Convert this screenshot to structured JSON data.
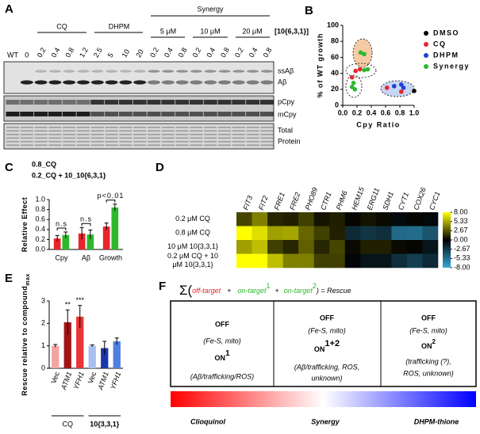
{
  "panels": [
    "A",
    "B",
    "C",
    "D",
    "E",
    "F"
  ],
  "blot": {
    "lanes": [
      "WT",
      "0",
      "0.2",
      "0.4",
      "0.8",
      "1.2",
      "2.5",
      "5",
      "10",
      "20",
      "0.2",
      "0.4",
      "0.8",
      "0.2",
      "0.4",
      "0.8",
      "0.2",
      "0.4",
      "0.8"
    ],
    "groups": [
      "CQ",
      "DHPM"
    ],
    "synergy": "Synergy",
    "concentrations": [
      "5 μM",
      "10 μM",
      "20 μM"
    ],
    "compound": "[10{6,3,1}]",
    "bands": [
      "ssAβ",
      "Aβ",
      "pCpy",
      "mCpy"
    ],
    "loading": [
      "Total",
      "Protein"
    ]
  },
  "chart_data": [
    {
      "type": "scatter",
      "xlabel": "Cpy Ratio",
      "ylabel": "% of WT growth",
      "xlim": [
        0,
        1
      ],
      "xticks": [
        {
          "value": 0,
          "label": "0.0"
        },
        0.2,
        0.4,
        0.6,
        0.8,
        {
          "value": 1,
          "label": "1.0"
        }
      ],
      "ylim": [
        0,
        100
      ],
      "yticks": [
        0,
        20,
        40,
        60,
        80,
        100
      ],
      "series": [
        {
          "name": "DMSO",
          "color": "#000000",
          "x": [
            1.0
          ],
          "values": [
            18
          ]
        },
        {
          "name": "CQ",
          "color": "#e8262a",
          "x": [
            0.13,
            0.18,
            0.24,
            0.62,
            0.82
          ],
          "values": [
            35,
            43,
            45,
            22,
            17
          ]
        },
        {
          "name": "DHPM",
          "color": "#1f3fd6",
          "x": [
            0.72,
            0.82,
            0.85
          ],
          "values": [
            24,
            26,
            22
          ]
        },
        {
          "name": "Synergy",
          "color": "#2db82d",
          "x": [
            0.25,
            0.3,
            0.3,
            0.35,
            0.15,
            0.17,
            0.13
          ],
          "values": [
            66,
            64,
            44,
            45,
            28,
            20,
            23
          ]
        }
      ]
    },
    {
      "type": "bar",
      "ylabel": "Relative Effect",
      "categories": [
        "Cpy",
        "Aβ",
        "Growth"
      ],
      "series": [
        {
          "name": "0.8_CQ",
          "color": "#e8262a",
          "values": [
            0.22,
            0.32,
            0.46
          ],
          "errors": [
            0.06,
            0.12,
            0.07
          ]
        },
        {
          "name": "0.2_CQ + 10_10{6,3,1}",
          "color": "#2db82d",
          "values": [
            0.29,
            0.3,
            0.84
          ],
          "errors": [
            0.06,
            0.09,
            0.07
          ]
        }
      ],
      "ylim": [
        0,
        1
      ],
      "yticks": [
        {
          "value": 0,
          "label": "0.0"
        },
        0.2,
        0.4,
        0.6,
        0.8,
        {
          "value": 1,
          "label": "1.0"
        }
      ],
      "annotations": [
        "n.s",
        "n.s",
        "p<0.01"
      ]
    },
    {
      "type": "heatmap",
      "columns": [
        "FIT3",
        "FIT2",
        "FRE1",
        "FRE2",
        "PHO89",
        "CTR1",
        "PHM6",
        "HEM15",
        "ERG11",
        "SDH1",
        "CYT1",
        "COX26",
        "CYC1"
      ],
      "rows": [
        [
          "0.2 μM CQ"
        ],
        [
          "0.8 μM CQ"
        ],
        [
          "10 μM 10{3,3,1}"
        ],
        [
          "0.2 μM CQ + 10",
          "μM 10{3,3,1}"
        ]
      ],
      "values": [
        [
          2.2,
          4.0,
          1.2,
          1.0,
          2.0,
          0.6,
          1.0,
          0.2,
          0.6,
          0.3,
          -0.5,
          0.2,
          -0.4
        ],
        [
          8.0,
          7.0,
          5.0,
          5.2,
          3.2,
          2.0,
          1.0,
          -2.0,
          -2.5,
          -2.2,
          -5.0,
          -5.2,
          -4.0
        ],
        [
          5.0,
          6.0,
          2.0,
          1.2,
          3.0,
          1.2,
          2.2,
          0.3,
          1.0,
          1.0,
          0.3,
          0.2,
          -1.0
        ],
        [
          8.0,
          8.0,
          6.0,
          4.0,
          4.0,
          2.0,
          2.0,
          -0.3,
          -1.0,
          -1.0,
          -2.2,
          -3.0,
          -2.0
        ]
      ],
      "clim": [
        -8,
        8
      ],
      "colors": [
        "#35a8d8",
        "#000000",
        "#ffff00"
      ],
      "colorbar_ticks": [
        {
          "value": 8,
          "label": "8.00"
        },
        {
          "value": 5.33,
          "label": "5.33"
        },
        {
          "value": 2.67,
          "label": "2.67"
        },
        {
          "value": 0,
          "label": "0.00"
        },
        {
          "value": -2.67,
          "label": "-2.67"
        },
        {
          "value": -5.33,
          "label": "-5.33"
        },
        {
          "value": -8,
          "label": "-8.00"
        }
      ]
    },
    {
      "type": "bar",
      "ylabel": "Rescue relative to compound",
      "ylabel_subscript": "max",
      "categories": [
        "Vec",
        "ATM1",
        "YFH1",
        "Vec",
        "ATM1",
        "YFH1"
      ],
      "groups": [
        "CQ",
        "10{3,3,1}"
      ],
      "values": [
        1.0,
        2.05,
        2.3,
        1.0,
        0.9,
        1.2
      ],
      "errors": [
        0.06,
        0.55,
        0.5,
        0.04,
        0.3,
        0.15
      ],
      "colors": [
        "#f4a3a3",
        "#a01616",
        "#e83434",
        "#a9bff0",
        "#1a36a8",
        "#4f7fe0"
      ],
      "ylim": [
        0,
        3
      ],
      "yticks": [
        0,
        1,
        2,
        3
      ],
      "annotations": [
        null,
        "**",
        "***",
        null,
        null,
        null
      ]
    }
  ],
  "diagram": {
    "formula": [
      "Σ(",
      "off-target",
      "+",
      "on-target",
      "1",
      "+",
      "on-target",
      "2",
      ") = Rescue"
    ],
    "columns": [
      {
        "off": "OFF",
        "off_detail": "(Fe-S, mito)",
        "on": "ON",
        "on_sup": "1",
        "on_detail": [
          "(Aβ/trafficking/ROS)"
        ]
      },
      {
        "off": "OFF",
        "off_detail": "(Fe-S, mito)",
        "on": "ON",
        "on_sup": "1+2",
        "on_detail": [
          "(Aβ/trafficking, ROS,",
          "unknown)"
        ]
      },
      {
        "off": "OFF",
        "off_detail": "(Fe-S, mito)",
        "on": "ON",
        "on_sup": "2",
        "on_detail": [
          "(trafficking (?),",
          "ROS, unknown)"
        ]
      }
    ],
    "spectrum": [
      "Clioquinol",
      "Synergy",
      "DHPM-thione"
    ]
  }
}
